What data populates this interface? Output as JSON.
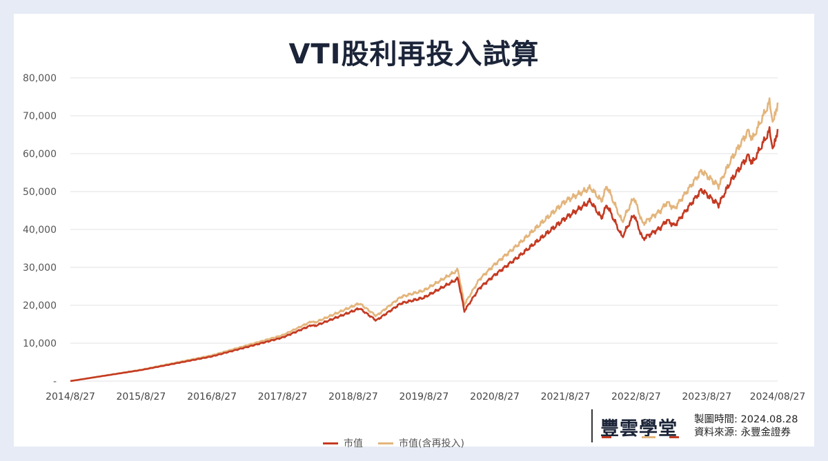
{
  "chart_data": {
    "type": "line",
    "title": "VTI股利再投入試算",
    "xlabel": "",
    "ylabel": "",
    "ylim": [
      0,
      80000
    ],
    "yticks": [
      0,
      10000,
      20000,
      30000,
      40000,
      50000,
      60000,
      70000,
      80000
    ],
    "ytick_labels": [
      "-",
      "10,000",
      "20,000",
      "30,000",
      "40,000",
      "50,000",
      "60,000",
      "70,000",
      "80,000"
    ],
    "xlim": [
      "2014-08-27",
      "2024-08-27"
    ],
    "xtick_labels": [
      "2014/8/27",
      "2015/8/27",
      "2016/8/27",
      "2017/8/27",
      "2018/8/27",
      "2019/8/27",
      "2020/8/27",
      "2021/8/27",
      "2022/8/27",
      "2023/8/27",
      "2024/08/27"
    ],
    "xtick_dates": [
      "2014-08-27",
      "2015-08-27",
      "2016-08-27",
      "2017-08-27",
      "2018-08-27",
      "2019-08-27",
      "2020-08-27",
      "2021-08-27",
      "2022-08-27",
      "2023-08-27",
      "2024-08-27"
    ],
    "grid": "horizontal",
    "legend_position": "bottom",
    "series": [
      {
        "name": "市值",
        "color": "#c43a22",
        "x": [
          "2014-08-27",
          "2015-08-27",
          "2016-08-27",
          "2017-08-27",
          "2018-01-26",
          "2018-02-08",
          "2018-08-27",
          "2018-09-28",
          "2018-12-24",
          "2019-04-30",
          "2019-08-27",
          "2020-02-19",
          "2020-03-23",
          "2020-06-08",
          "2020-08-27",
          "2021-01-01",
          "2021-08-27",
          "2022-01-03",
          "2022-03-01",
          "2022-03-29",
          "2022-06-16",
          "2022-08-16",
          "2022-09-30",
          "2023-01-01",
          "2023-02-02",
          "2023-03-13",
          "2023-07-31",
          "2023-10-27",
          "2024-01-01",
          "2024-03-28",
          "2024-04-19",
          "2024-07-16",
          "2024-08-05",
          "2024-08-27"
        ],
        "values": [
          0,
          2900,
          6500,
          11500,
          14800,
          14500,
          18500,
          19200,
          16000,
          20500,
          22000,
          27000,
          18500,
          24500,
          28000,
          33000,
          43000,
          47500,
          43000,
          46500,
          38000,
          44000,
          37500,
          40500,
          42500,
          41000,
          50500,
          46500,
          53000,
          59500,
          57500,
          66000,
          61000,
          66500
        ]
      },
      {
        "name": "市值(含再投入)",
        "color": "#e3b57c",
        "x": [
          "2014-08-27",
          "2015-08-27",
          "2016-08-27",
          "2017-08-27",
          "2018-01-26",
          "2018-02-08",
          "2018-08-27",
          "2018-09-28",
          "2018-12-24",
          "2019-04-30",
          "2019-08-27",
          "2020-02-19",
          "2020-03-23",
          "2020-06-08",
          "2020-08-27",
          "2021-01-01",
          "2021-08-27",
          "2022-01-03",
          "2022-03-01",
          "2022-03-29",
          "2022-06-16",
          "2022-08-16",
          "2022-09-30",
          "2023-01-01",
          "2023-02-02",
          "2023-03-13",
          "2023-07-31",
          "2023-10-27",
          "2024-01-01",
          "2024-03-28",
          "2024-04-19",
          "2024-07-16",
          "2024-08-05",
          "2024-08-27"
        ],
        "values": [
          0,
          3000,
          6800,
          12100,
          15800,
          15400,
          19800,
          20500,
          17200,
          22200,
          23900,
          29300,
          20200,
          26800,
          30800,
          36300,
          47500,
          51000,
          47500,
          51500,
          42000,
          48500,
          41500,
          45000,
          47200,
          45500,
          55500,
          51500,
          58500,
          66000,
          63800,
          73500,
          68000,
          73500
        ]
      }
    ]
  },
  "legend": [
    "市值",
    "市值(含再投入)"
  ],
  "footer": {
    "logo": "豐雲學堂",
    "made_label": "製圖時間:",
    "made_date": "2024.08.28",
    "source_label": "資料來源:",
    "source": "永豐金證券"
  }
}
